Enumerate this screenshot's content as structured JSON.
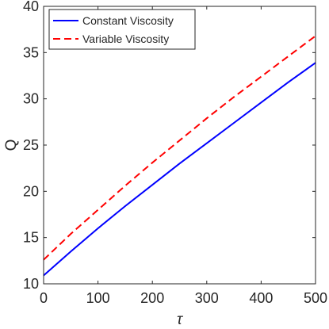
{
  "chart_data": {
    "type": "line",
    "title": "",
    "xlabel": "τ",
    "ylabel": "Q",
    "xlim": [
      0,
      500
    ],
    "ylim": [
      10,
      40
    ],
    "xticks": [
      "0",
      "100",
      "200",
      "300",
      "400",
      "500"
    ],
    "yticks": [
      "10",
      "15",
      "20",
      "25",
      "30",
      "35",
      "40"
    ],
    "grid": false,
    "legend_position": "top-left",
    "series": [
      {
        "name": "Constant Viscosity",
        "color": "#0000ff",
        "style": "solid",
        "x": [
          0,
          50,
          100,
          150,
          200,
          250,
          300,
          350,
          400,
          450,
          500
        ],
        "y": [
          10.9,
          13.5,
          16.0,
          18.4,
          20.7,
          23.0,
          25.2,
          27.4,
          29.6,
          31.8,
          33.9
        ]
      },
      {
        "name": "Variable Viscosity",
        "color": "#ff0000",
        "style": "dashed",
        "x": [
          0,
          50,
          100,
          150,
          200,
          250,
          300,
          350,
          400,
          450,
          500
        ],
        "y": [
          12.6,
          15.4,
          18.0,
          20.6,
          23.1,
          25.5,
          27.9,
          30.2,
          32.4,
          34.6,
          36.8
        ]
      }
    ]
  }
}
